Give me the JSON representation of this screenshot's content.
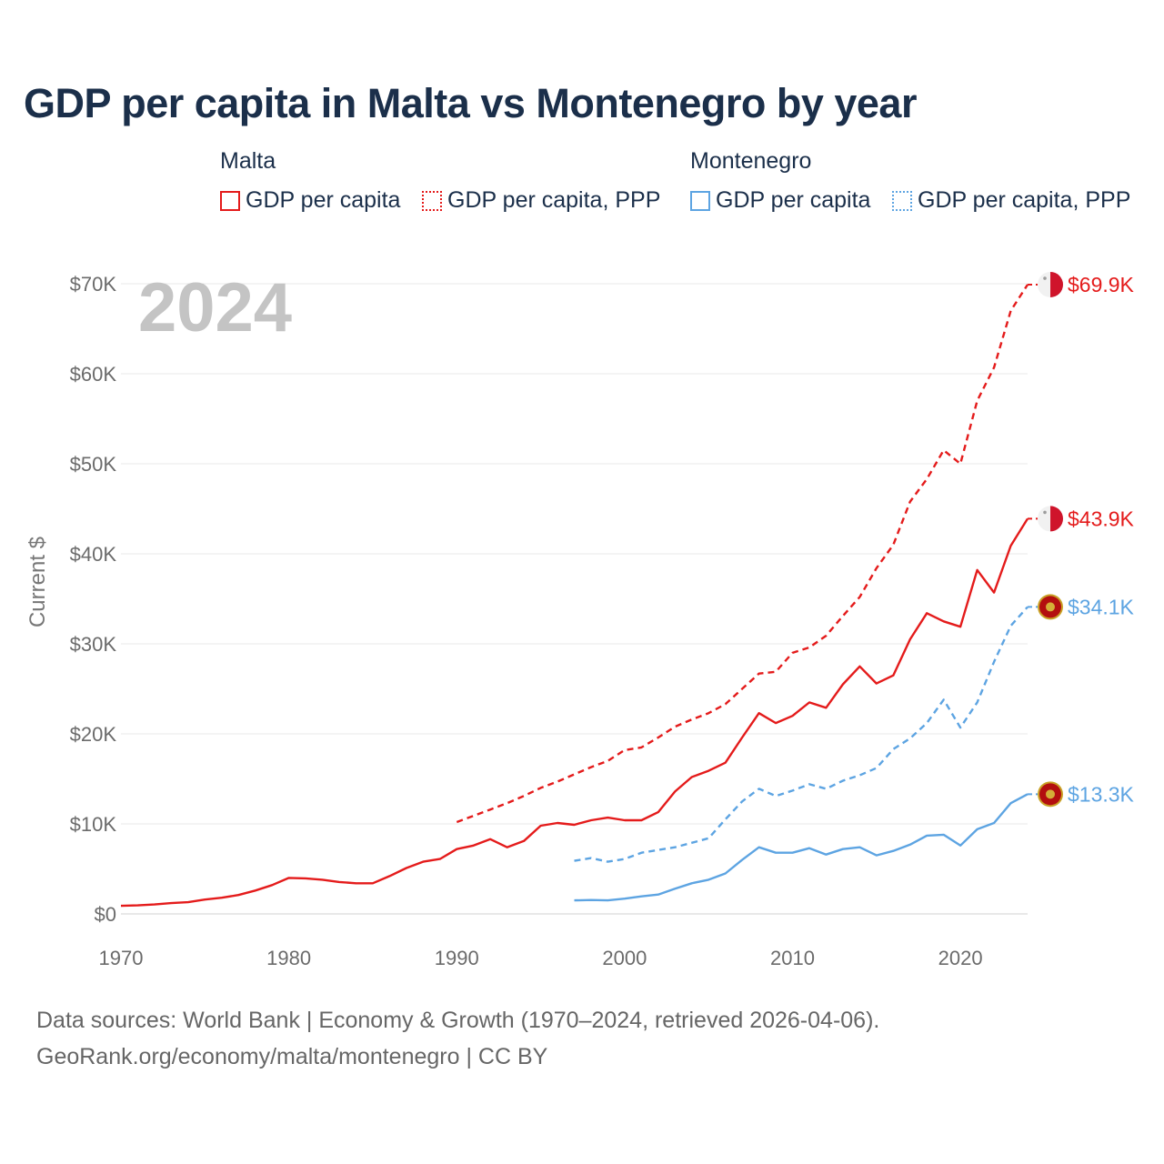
{
  "title": "GDP per capita in Malta vs Montenegro by year",
  "year_label": "2024",
  "legend": {
    "groups": [
      {
        "name": "Malta",
        "color": "#e41b1b",
        "items": [
          {
            "label": "GDP per capita",
            "style": "solid"
          },
          {
            "label": "GDP per capita, PPP",
            "style": "dotted"
          }
        ]
      },
      {
        "name": "Montenegro",
        "color": "#5da4e2",
        "items": [
          {
            "label": "GDP per capita",
            "style": "solid"
          },
          {
            "label": "GDP per capita, PPP",
            "style": "dotted"
          }
        ]
      }
    ]
  },
  "footer": {
    "line1": "Data sources: World Bank | Economy & Growth (1970–2024, retrieved 2026-04-06).",
    "line2": "GeoRank.org/economy/malta/montenegro | CC BY"
  },
  "chart_data": {
    "type": "line",
    "title": "GDP per capita in Malta vs Montenegro by year",
    "xlabel": "",
    "ylabel": "Current $",
    "xlim": [
      1970,
      2024
    ],
    "ylim": [
      0,
      70000
    ],
    "x_ticks": [
      1970,
      1980,
      1990,
      2000,
      2010,
      2020
    ],
    "y_ticks": [
      {
        "value": 0,
        "label": "$0"
      },
      {
        "value": 10000,
        "label": "$10K"
      },
      {
        "value": 20000,
        "label": "$20K"
      },
      {
        "value": 30000,
        "label": "$30K"
      },
      {
        "value": 40000,
        "label": "$40K"
      },
      {
        "value": 50000,
        "label": "$50K"
      },
      {
        "value": 60000,
        "label": "$60K"
      },
      {
        "value": 70000,
        "label": "$70K"
      }
    ],
    "grid": true,
    "series": [
      {
        "name": "Malta GDP per capita, PPP",
        "country": "Malta",
        "dash": "dashed",
        "color": "#e41b1b",
        "end_label": "$69.9K",
        "start_year": 1990,
        "values": [
          10200,
          10900,
          11600,
          12300,
          13100,
          14000,
          14700,
          15500,
          16300,
          17000,
          18200,
          18500,
          19600,
          20800,
          21600,
          22300,
          23300,
          25000,
          26700,
          26900,
          29000,
          29600,
          30900,
          33100,
          35200,
          38400,
          41000,
          45800,
          48300,
          51500,
          50000,
          57000,
          60700,
          67000,
          69900
        ]
      },
      {
        "name": "Malta GDP per capita",
        "country": "Malta",
        "dash": "solid",
        "color": "#e41b1b",
        "end_label": "$43.9K",
        "start_year": 1970,
        "values": [
          900,
          950,
          1050,
          1200,
          1300,
          1600,
          1800,
          2100,
          2600,
          3200,
          4000,
          3950,
          3800,
          3550,
          3400,
          3400,
          4200,
          5100,
          5800,
          6100,
          7200,
          7600,
          8300,
          7400,
          8100,
          9800,
          10100,
          9900,
          10400,
          10700,
          10400,
          10400,
          11300,
          13600,
          15200,
          15900,
          16800,
          19600,
          22300,
          21200,
          22000,
          23500,
          22900,
          25500,
          27500,
          25600,
          26500,
          30500,
          33400,
          32500,
          31900,
          38200,
          35700,
          40900,
          43900
        ]
      },
      {
        "name": "Montenegro GDP per capita, PPP",
        "country": "Montenegro",
        "dash": "dashed",
        "color": "#5da4e2",
        "end_label": "$34.1K",
        "start_year": 1997,
        "values": [
          5900,
          6200,
          5800,
          6100,
          6800,
          7100,
          7400,
          7900,
          8400,
          10500,
          12500,
          13900,
          13100,
          13700,
          14400,
          13900,
          14800,
          15400,
          16200,
          18300,
          19500,
          21200,
          23800,
          20700,
          23500,
          28000,
          32000,
          34100
        ]
      },
      {
        "name": "Montenegro GDP per capita",
        "country": "Montenegro",
        "dash": "solid",
        "color": "#5da4e2",
        "end_label": "$13.3K",
        "start_year": 1997,
        "values": [
          1500,
          1550,
          1500,
          1700,
          1950,
          2150,
          2800,
          3400,
          3800,
          4500,
          6000,
          7400,
          6800,
          6800,
          7300,
          6600,
          7200,
          7400,
          6500,
          7000,
          7700,
          8700,
          8800,
          7600,
          9400,
          10100,
          12300,
          13300
        ]
      }
    ]
  }
}
